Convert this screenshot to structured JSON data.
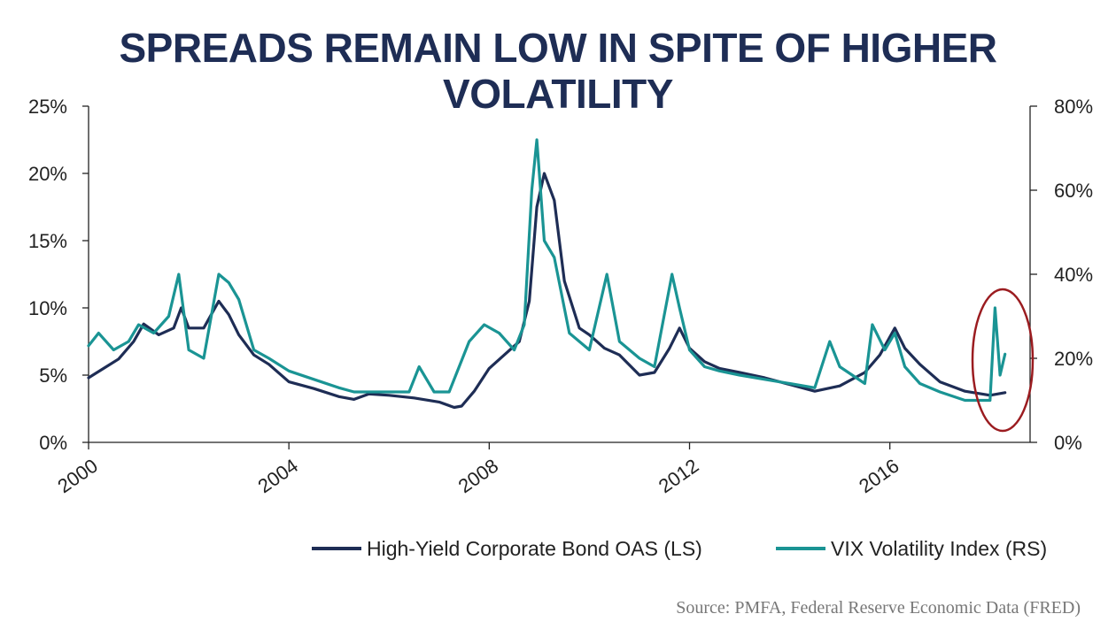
{
  "chart_data": {
    "type": "line",
    "title": "SPREADS REMAIN LOW IN SPITE OF HIGHER VOLATILITY",
    "xlabel": "",
    "xlim": [
      2000,
      2018.8
    ],
    "x_ticks": [
      2000,
      2004,
      2008,
      2012,
      2016
    ],
    "x_tick_labels": [
      "2000",
      "2004",
      "2008",
      "2012",
      "2016"
    ],
    "y_left": {
      "label": "",
      "lim": [
        0,
        25
      ],
      "ticks": [
        0,
        5,
        10,
        15,
        20,
        25
      ],
      "tick_labels": [
        "0%",
        "5%",
        "10%",
        "15%",
        "20%",
        "25%"
      ]
    },
    "y_right": {
      "label": "",
      "lim": [
        0,
        80
      ],
      "ticks": [
        0,
        20,
        40,
        60,
        80
      ],
      "tick_labels": [
        "0%",
        "20%",
        "40%",
        "60%",
        "80%"
      ]
    },
    "grid": false,
    "legend_position": "bottom-right",
    "series": [
      {
        "name": "High-Yield Corporate Bond OAS (LS)",
        "axis": "left",
        "color": "#1e2d55",
        "x": [
          2000.0,
          2000.3,
          2000.6,
          2000.9,
          2001.1,
          2001.4,
          2001.7,
          2001.85,
          2002.0,
          2002.3,
          2002.6,
          2002.8,
          2003.0,
          2003.3,
          2003.6,
          2004.0,
          2004.5,
          2005.0,
          2005.3,
          2005.6,
          2006.0,
          2006.5,
          2007.0,
          2007.3,
          2007.45,
          2007.7,
          2008.0,
          2008.3,
          2008.6,
          2008.8,
          2008.95,
          2009.1,
          2009.3,
          2009.5,
          2009.8,
          2010.0,
          2010.3,
          2010.6,
          2011.0,
          2011.3,
          2011.6,
          2011.8,
          2012.0,
          2012.3,
          2012.6,
          2013.0,
          2013.5,
          2014.0,
          2014.5,
          2015.0,
          2015.5,
          2015.8,
          2016.1,
          2016.3,
          2016.6,
          2017.0,
          2017.5,
          2018.0,
          2018.3
        ],
        "values": [
          4.8,
          5.5,
          6.2,
          7.5,
          8.8,
          8.0,
          8.5,
          10.0,
          8.5,
          8.5,
          10.5,
          9.5,
          8.0,
          6.5,
          5.8,
          4.5,
          4.0,
          3.4,
          3.2,
          3.6,
          3.5,
          3.3,
          3.0,
          2.6,
          2.7,
          3.8,
          5.5,
          6.5,
          7.5,
          10.5,
          17.5,
          20.0,
          18.0,
          12.0,
          8.5,
          8.0,
          7.0,
          6.5,
          5.0,
          5.2,
          7.0,
          8.5,
          7.0,
          6.0,
          5.5,
          5.2,
          4.8,
          4.3,
          3.8,
          4.2,
          5.2,
          6.5,
          8.5,
          7.0,
          5.8,
          4.5,
          3.8,
          3.5,
          3.7
        ]
      },
      {
        "name": "VIX Volatility Index (RS)",
        "axis": "right",
        "color": "#1a9494",
        "x": [
          2000.0,
          2000.2,
          2000.5,
          2000.8,
          2001.0,
          2001.3,
          2001.6,
          2001.8,
          2002.0,
          2002.3,
          2002.6,
          2002.8,
          2003.0,
          2003.3,
          2003.6,
          2004.0,
          2004.5,
          2005.0,
          2005.3,
          2005.6,
          2006.0,
          2006.4,
          2006.6,
          2006.9,
          2007.2,
          2007.6,
          2007.9,
          2008.2,
          2008.5,
          2008.7,
          2008.85,
          2008.95,
          2009.1,
          2009.3,
          2009.6,
          2010.0,
          2010.35,
          2010.6,
          2011.0,
          2011.3,
          2011.65,
          2011.8,
          2012.0,
          2012.3,
          2012.6,
          2013.0,
          2013.5,
          2014.0,
          2014.5,
          2014.8,
          2015.0,
          2015.5,
          2015.65,
          2015.9,
          2016.1,
          2016.3,
          2016.6,
          2017.0,
          2017.5,
          2018.0,
          2018.1,
          2018.2,
          2018.3
        ],
        "values": [
          23,
          26,
          22,
          24,
          28,
          26,
          30,
          40,
          22,
          20,
          40,
          38,
          34,
          22,
          20,
          17,
          15,
          13,
          12,
          12,
          12,
          12,
          18,
          12,
          12,
          24,
          28,
          26,
          22,
          28,
          60,
          72,
          48,
          44,
          26,
          22,
          40,
          24,
          20,
          18,
          40,
          32,
          22,
          18,
          17,
          16,
          15,
          14,
          13,
          24,
          18,
          14,
          28,
          22,
          26,
          18,
          14,
          12,
          10,
          10,
          32,
          16,
          21
        ]
      }
    ],
    "annotations": [
      "red ellipse highlighting the early-2018 VIX spike"
    ]
  },
  "source": "Source: PMFA, Federal Reserve Economic Data (FRED)"
}
